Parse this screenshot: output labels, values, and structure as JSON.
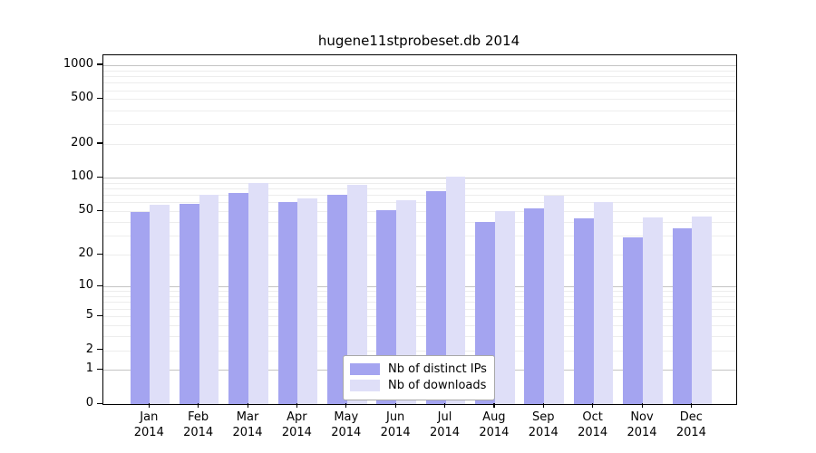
{
  "chart_data": {
    "type": "bar",
    "title": "hugene11stprobeset.db 2014",
    "categories": [
      "Jan",
      "Feb",
      "Mar",
      "Apr",
      "May",
      "Jun",
      "Jul",
      "Aug",
      "Sep",
      "Oct",
      "Nov",
      "Dec"
    ],
    "year": "2014",
    "series": [
      {
        "name": "Nb of distinct IPs",
        "color": "#a4a4f0",
        "values": [
          49,
          58,
          73,
          61,
          70,
          51,
          76,
          40,
          53,
          43,
          29,
          35
        ]
      },
      {
        "name": "Nb of downloads",
        "color": "#dfdff8",
        "values": [
          57,
          70,
          90,
          65,
          87,
          63,
          103,
          50,
          69,
          60,
          44,
          45
        ]
      }
    ],
    "y_ticks": [
      0,
      1,
      2,
      5,
      10,
      20,
      50,
      100,
      200,
      500,
      1000
    ],
    "y_scale": "log10(1+x)",
    "ylim": [
      0,
      1220
    ],
    "xlabel": "",
    "ylabel": "",
    "grid": "horizontal, minor log gridlines",
    "legend_position": "bottom-center",
    "colors": {
      "major_gridline": "#c4c4c4",
      "minor_gridline": "#ededed",
      "axis": "#000000",
      "background": "#ffffff"
    }
  }
}
